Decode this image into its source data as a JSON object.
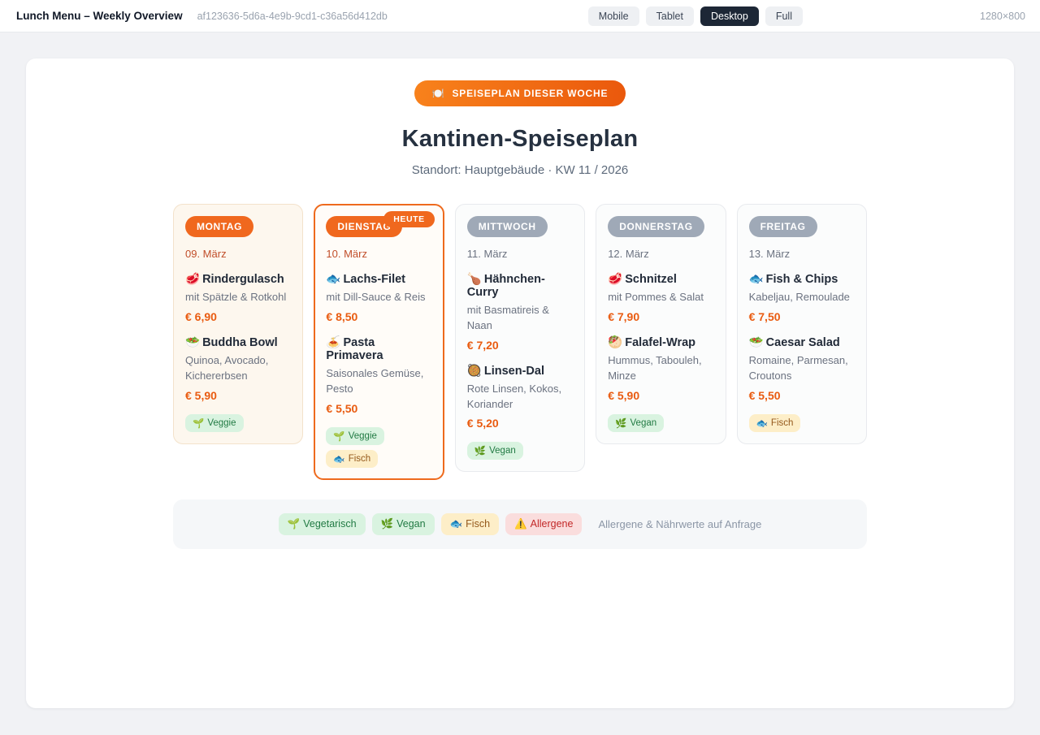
{
  "header": {
    "title": "Lunch Menu – Weekly Overview",
    "uuid": "af123636-5d6a-4e9b-9cd1-c36a56d412db",
    "viewport_buttons": [
      {
        "label": "Mobile",
        "active": false
      },
      {
        "label": "Tablet",
        "active": false
      },
      {
        "label": "Desktop",
        "active": true
      },
      {
        "label": "Full",
        "active": false
      }
    ],
    "dimensions": "1280×800"
  },
  "menu": {
    "badge": {
      "icon": "🍽️",
      "label": "SPEISEPLAN DIESER WOCHE"
    },
    "title": "Kantinen-Speiseplan",
    "subtitle": "Standort: Hauptgebäude · KW 11 / 2026",
    "days": [
      {
        "label": "MONTAG",
        "date": "09. März",
        "style": "warm",
        "today": false,
        "today_label": "",
        "dishes": [
          {
            "emoji": "🥩",
            "name": "Rindergulasch",
            "desc": "mit Spätzle & Rotkohl",
            "price": "€ 6,90"
          },
          {
            "emoji": "🥗",
            "name": "Buddha Bowl",
            "desc": "Quinoa, Avocado, Kichererbsen",
            "price": "€ 5,90"
          }
        ],
        "tags": [
          {
            "emoji": "🌱",
            "label": "Veggie",
            "type": "green"
          }
        ]
      },
      {
        "label": "DIENSTAG",
        "date": "10. März",
        "style": "today",
        "today": true,
        "today_label": "HEUTE",
        "dishes": [
          {
            "emoji": "🐟",
            "name": "Lachs-Filet",
            "desc": "mit Dill-Sauce & Reis",
            "price": "€ 8,50"
          },
          {
            "emoji": "🍝",
            "name": "Pasta Primavera",
            "desc": "Saisonales Gemüse, Pesto",
            "price": "€ 5,50"
          }
        ],
        "tags": [
          {
            "emoji": "🌱",
            "label": "Veggie",
            "type": "green"
          },
          {
            "emoji": "🐟",
            "label": "Fisch",
            "type": "amber"
          }
        ]
      },
      {
        "label": "MITTWOCH",
        "date": "11. März",
        "style": "plain",
        "today": false,
        "today_label": "",
        "dishes": [
          {
            "emoji": "🍗",
            "name": "Hähnchen-Curry",
            "desc": "mit Basmatireis & Naan",
            "price": "€ 7,20"
          },
          {
            "emoji": "🥘",
            "name": "Linsen-Dal",
            "desc": "Rote Linsen, Kokos, Koriander",
            "price": "€ 5,20"
          }
        ],
        "tags": [
          {
            "emoji": "🌿",
            "label": "Vegan",
            "type": "green"
          }
        ]
      },
      {
        "label": "DONNERSTAG",
        "date": "12. März",
        "style": "plain",
        "today": false,
        "today_label": "",
        "dishes": [
          {
            "emoji": "🥩",
            "name": "Schnitzel",
            "desc": "mit Pommes & Salat",
            "price": "€ 7,90"
          },
          {
            "emoji": "🥙",
            "name": "Falafel-Wrap",
            "desc": "Hummus, Tabouleh, Minze",
            "price": "€ 5,90"
          }
        ],
        "tags": [
          {
            "emoji": "🌿",
            "label": "Vegan",
            "type": "green"
          }
        ]
      },
      {
        "label": "FREITAG",
        "date": "13. März",
        "style": "plain",
        "today": false,
        "today_label": "",
        "dishes": [
          {
            "emoji": "🐟",
            "name": "Fish & Chips",
            "desc": "Kabeljau, Remoulade",
            "price": "€ 7,50"
          },
          {
            "emoji": "🥗",
            "name": "Caesar Salad",
            "desc": "Romaine, Parmesan, Croutons",
            "price": "€ 5,50"
          }
        ],
        "tags": [
          {
            "emoji": "🐟",
            "label": "Fisch",
            "type": "amber"
          }
        ]
      }
    ],
    "legend": {
      "tags": [
        {
          "emoji": "🌱",
          "label": "Vegetarisch",
          "type": "green"
        },
        {
          "emoji": "🌿",
          "label": "Vegan",
          "type": "green"
        },
        {
          "emoji": "🐟",
          "label": "Fisch",
          "type": "amber"
        },
        {
          "emoji": "⚠️",
          "label": "Allergene",
          "type": "red"
        }
      ],
      "note": "Allergene & Nährwerte auf Anfrage"
    }
  },
  "colors": {
    "accent_orange": "#f0681e",
    "price_orange": "#e95b10",
    "day_badge_gray": "#9fa9b7",
    "today_border": "#ee6a1d",
    "warm_card_bg": "#fdf7ee",
    "tag_green_bg": "#d9f3e0",
    "tag_green_text": "#217a43",
    "tag_amber_bg": "#fdeec8",
    "tag_amber_text": "#95591b",
    "tag_red_bg": "#fadddd",
    "tag_red_text": "#c22727",
    "active_button_bg": "#1d2736"
  }
}
